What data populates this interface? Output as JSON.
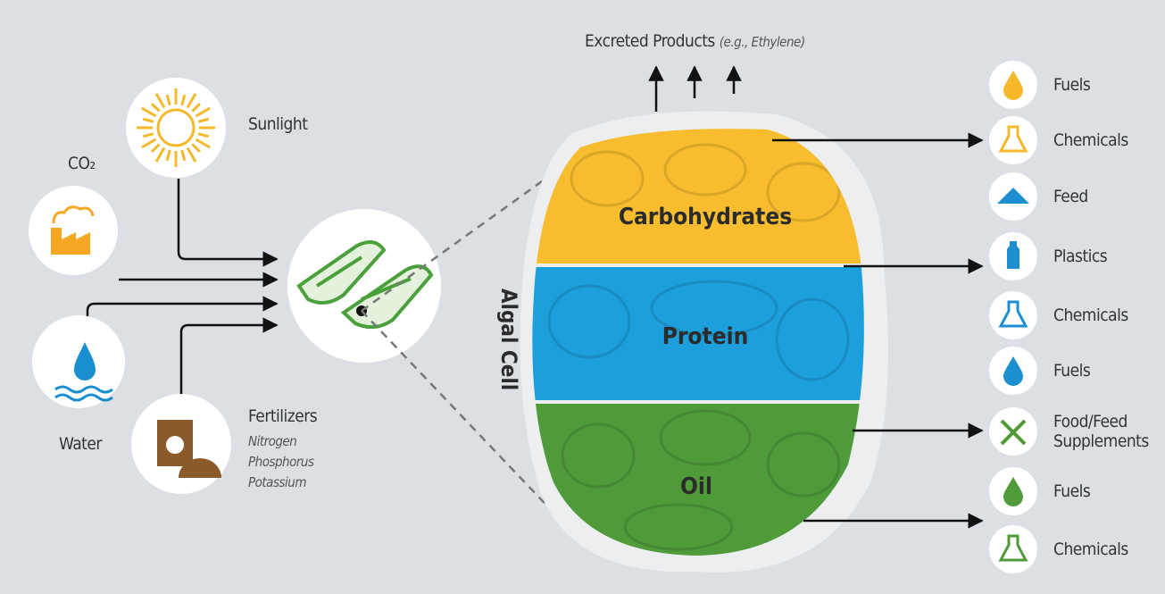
{
  "excreted": {
    "label": "Excreted Products",
    "example": "(e.g., Ethylene)"
  },
  "inputs": {
    "sunlight": "Sunlight",
    "co2": "CO₂",
    "water": "Water",
    "fertilizers": {
      "label": "Fertilizers",
      "items": [
        "Nitrogen",
        "Phosphorus",
        "Potassium"
      ]
    }
  },
  "cell": {
    "label": "Algal Cell",
    "components": [
      "Carbohydrates",
      "Protein",
      "Oil"
    ]
  },
  "products": [
    "Fuels",
    "Chemicals",
    "Feed",
    "Plastics",
    "Chemicals",
    "Fuels",
    "Food/Feed Supplements",
    "Fuels",
    "Chemicals"
  ]
}
